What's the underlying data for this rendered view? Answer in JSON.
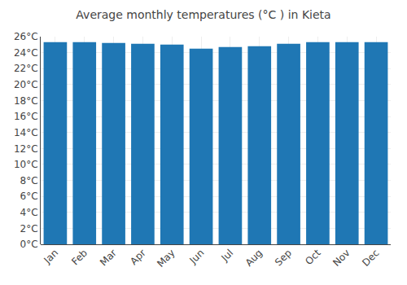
{
  "chart_data": {
    "type": "bar",
    "title": "Average monthly temperatures (°C ) in Kieta",
    "categories": [
      "Jan",
      "Feb",
      "Mar",
      "Apr",
      "May",
      "Jun",
      "Jul",
      "Aug",
      "Sep",
      "Oct",
      "Nov",
      "Dec"
    ],
    "values": [
      25.3,
      25.3,
      25.2,
      25.1,
      25.0,
      24.5,
      24.7,
      24.8,
      25.1,
      25.3,
      25.3,
      25.3
    ],
    "ylim": [
      0,
      26
    ],
    "yticks": [
      {
        "value": 0,
        "label": "0°C"
      },
      {
        "value": 2,
        "label": "2°C"
      },
      {
        "value": 4,
        "label": "4°C"
      },
      {
        "value": 6,
        "label": "6°C"
      },
      {
        "value": 8,
        "label": "8°C"
      },
      {
        "value": 10,
        "label": "10°C"
      },
      {
        "value": 12,
        "label": "12°C"
      },
      {
        "value": 14,
        "label": "14°C"
      },
      {
        "value": 16,
        "label": "16°C"
      },
      {
        "value": 18,
        "label": "18°C"
      },
      {
        "value": 20,
        "label": "20°C"
      },
      {
        "value": 22,
        "label": "22°C"
      },
      {
        "value": 24,
        "label": "24°C"
      },
      {
        "value": 26,
        "label": "26°C"
      }
    ],
    "grid": true
  }
}
